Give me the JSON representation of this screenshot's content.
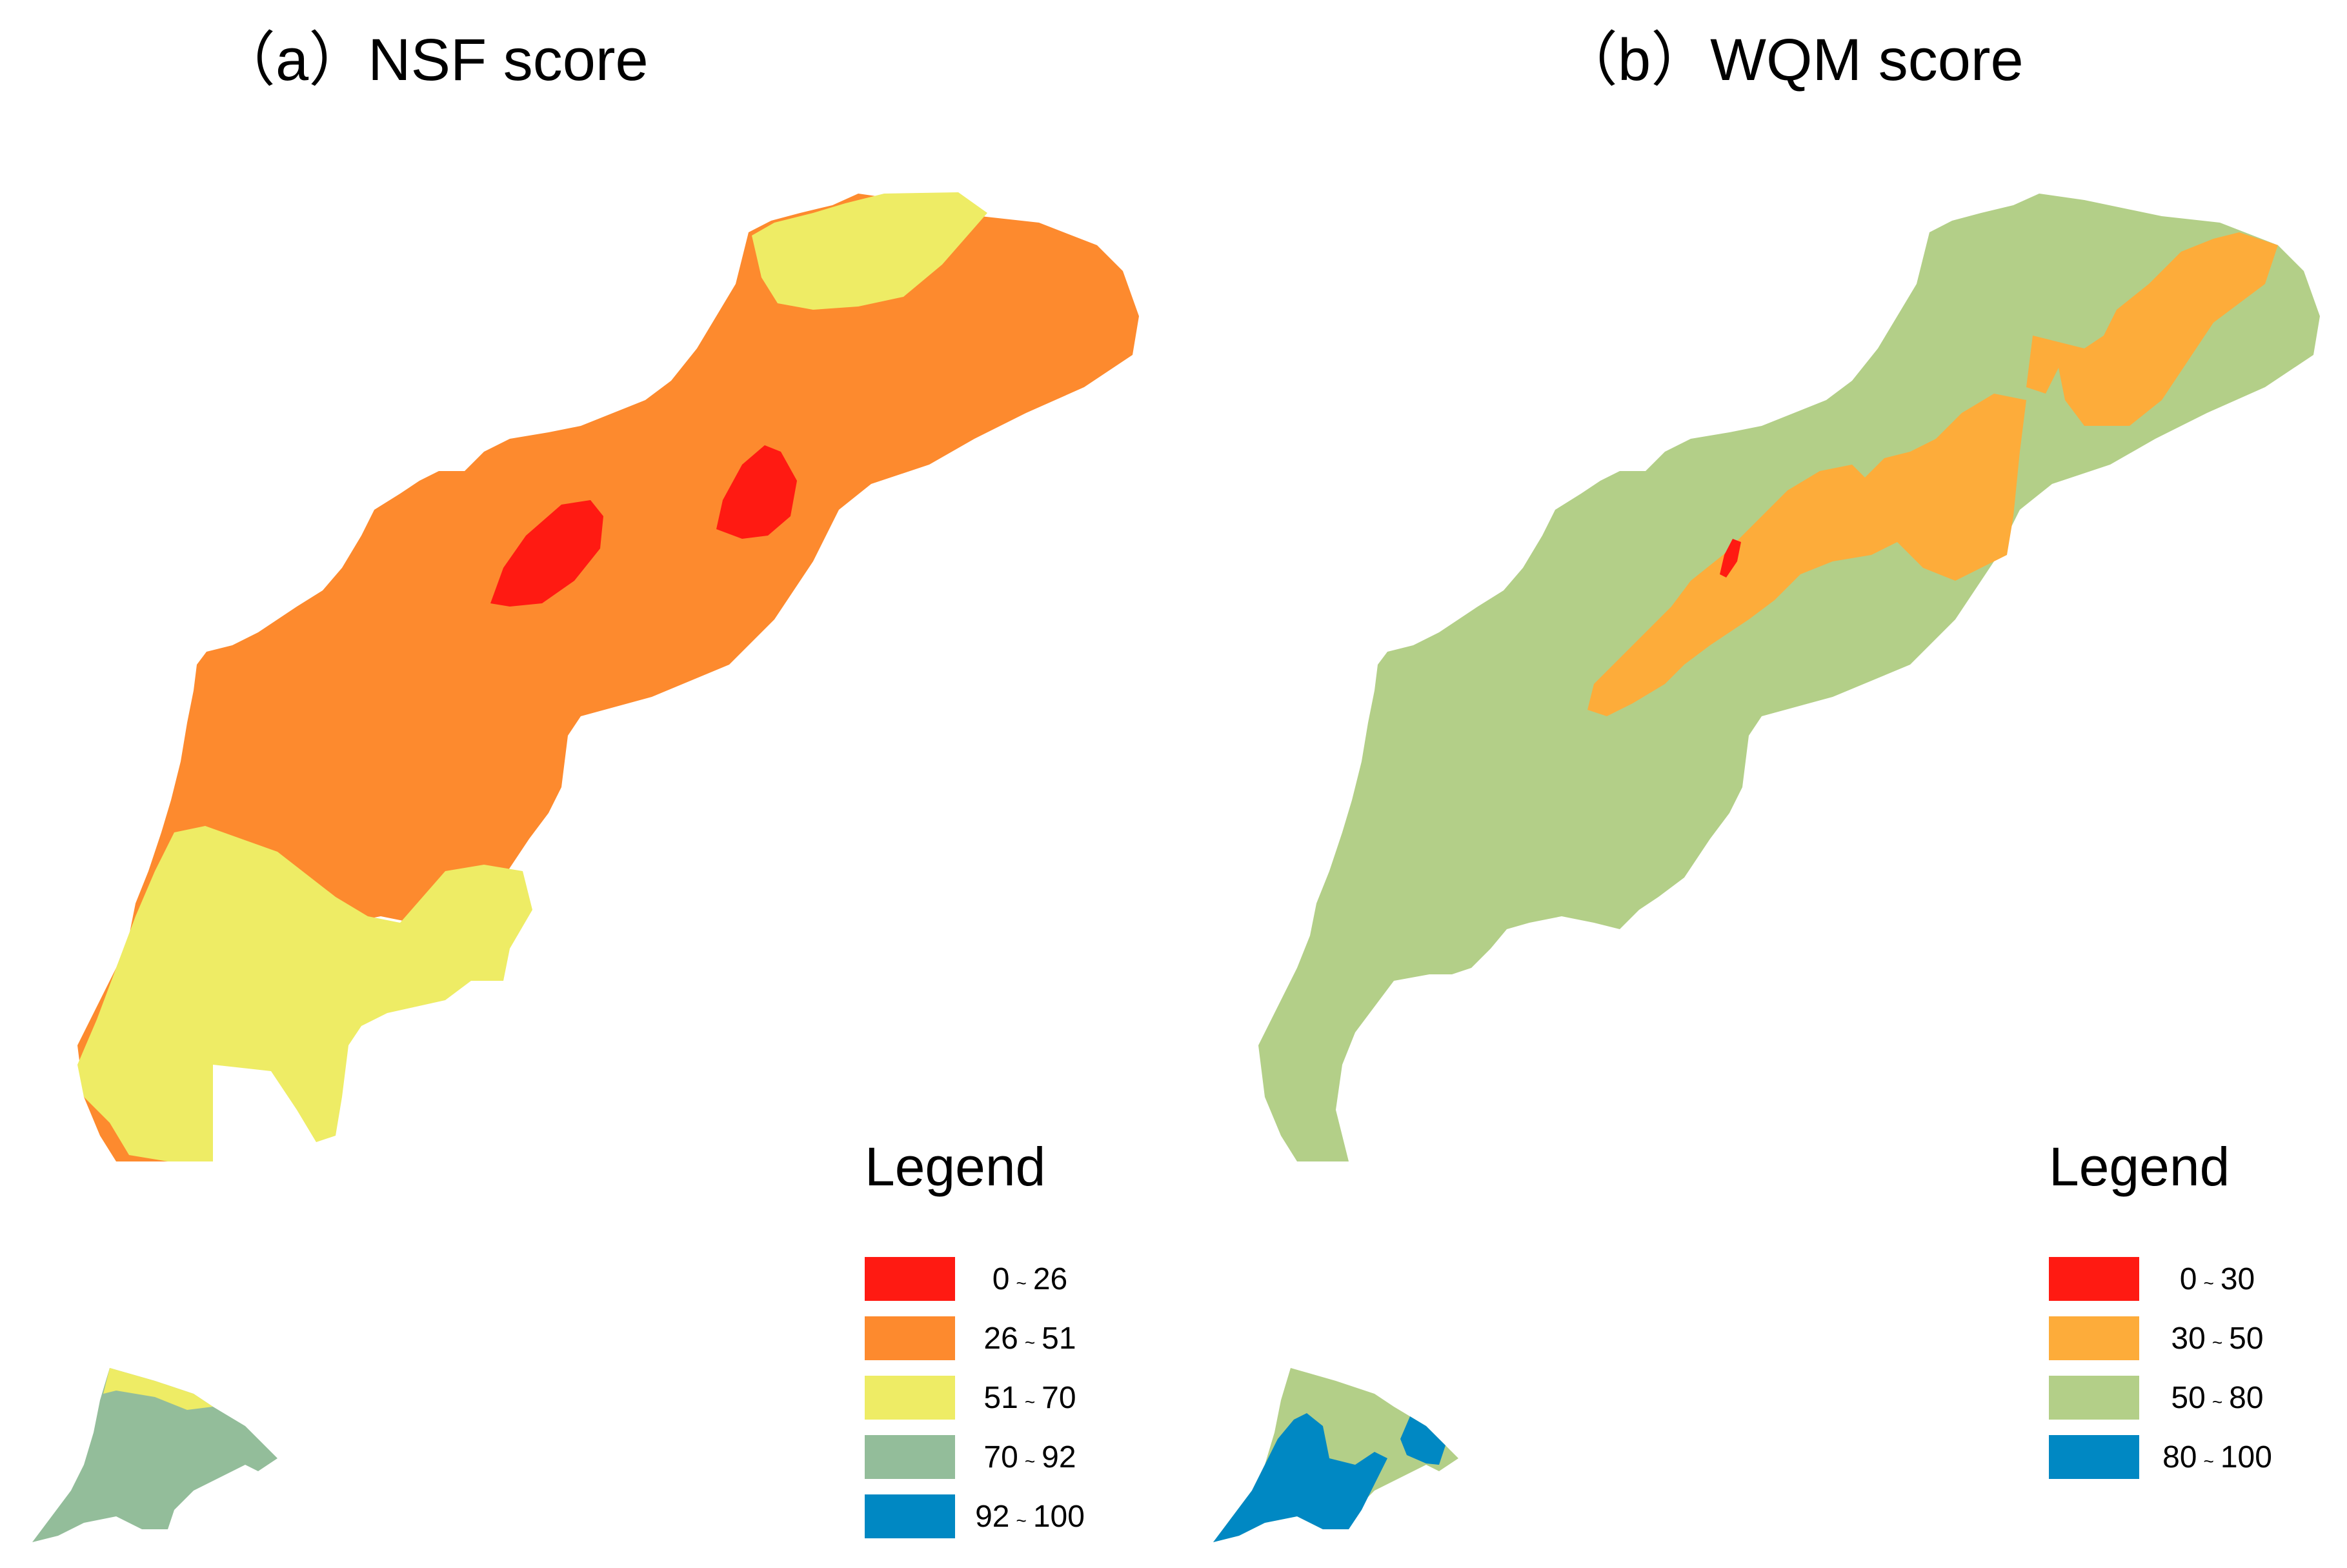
{
  "panels": [
    {
      "title": "（a）NSF score",
      "legend": {
        "heading": "Legend",
        "classes": [
          {
            "low": "0",
            "high": "26",
            "color": "#ff1a12"
          },
          {
            "low": "26",
            "high": "51",
            "color": "#fd8a2e"
          },
          {
            "low": "51",
            "high": "70",
            "color": "#eeec65"
          },
          {
            "low": "70",
            "high": "92",
            "color": "#93bd9a"
          },
          {
            "low": "92",
            "high": "100",
            "color": "#0088c3"
          }
        ]
      }
    },
    {
      "title": "（b）WQM score",
      "legend": {
        "heading": "Legend",
        "classes": [
          {
            "low": "0",
            "high": "30",
            "color": "#ff1a12"
          },
          {
            "low": "30",
            "high": "50",
            "color": "#fdac3a"
          },
          {
            "low": "50",
            "high": "80",
            "color": "#b3cf88"
          },
          {
            "low": "80",
            "high": "100",
            "color": "#0088c3"
          }
        ]
      }
    }
  ],
  "range_separator": "~"
}
